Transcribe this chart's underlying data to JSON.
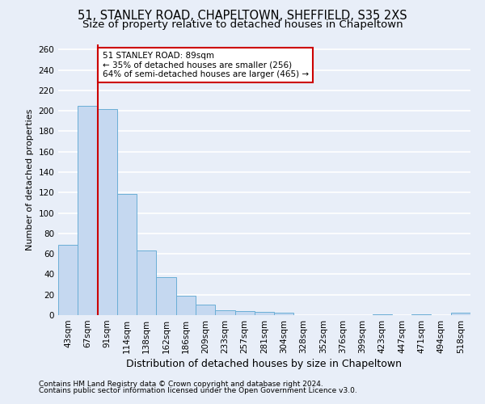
{
  "title1": "51, STANLEY ROAD, CHAPELTOWN, SHEFFIELD, S35 2XS",
  "title2": "Size of property relative to detached houses in Chapeltown",
  "xlabel": "Distribution of detached houses by size in Chapeltown",
  "ylabel": "Number of detached properties",
  "footnote1": "Contains HM Land Registry data © Crown copyright and database right 2024.",
  "footnote2": "Contains public sector information licensed under the Open Government Licence v3.0.",
  "bin_labels": [
    "43sqm",
    "67sqm",
    "91sqm",
    "114sqm",
    "138sqm",
    "162sqm",
    "186sqm",
    "209sqm",
    "233sqm",
    "257sqm",
    "281sqm",
    "304sqm",
    "328sqm",
    "352sqm",
    "376sqm",
    "399sqm",
    "423sqm",
    "447sqm",
    "471sqm",
    "494sqm",
    "518sqm"
  ],
  "bar_heights": [
    69,
    205,
    202,
    119,
    63,
    37,
    19,
    10,
    5,
    4,
    3,
    2,
    0,
    0,
    0,
    0,
    1,
    0,
    1,
    0,
    2
  ],
  "bar_color": "#c5d8f0",
  "bar_edge_color": "#6aaed6",
  "red_line_bar_index": 2,
  "red_line_color": "#cc0000",
  "annotation_line1": "51 STANLEY ROAD: 89sqm",
  "annotation_line2": "← 35% of detached houses are smaller (256)",
  "annotation_line3": "64% of semi-detached houses are larger (465) →",
  "annotation_box_color": "white",
  "annotation_box_edge_color": "#cc0000",
  "ylim": [
    0,
    265
  ],
  "yticks": [
    0,
    20,
    40,
    60,
    80,
    100,
    120,
    140,
    160,
    180,
    200,
    220,
    240,
    260
  ],
  "background_color": "#e8eef8",
  "grid_color": "white",
  "title1_fontsize": 10.5,
  "title2_fontsize": 9.5,
  "ylabel_fontsize": 8,
  "xlabel_fontsize": 9,
  "tick_fontsize": 7.5,
  "ytick_fontsize": 7.5,
  "footnote_fontsize": 6.5
}
